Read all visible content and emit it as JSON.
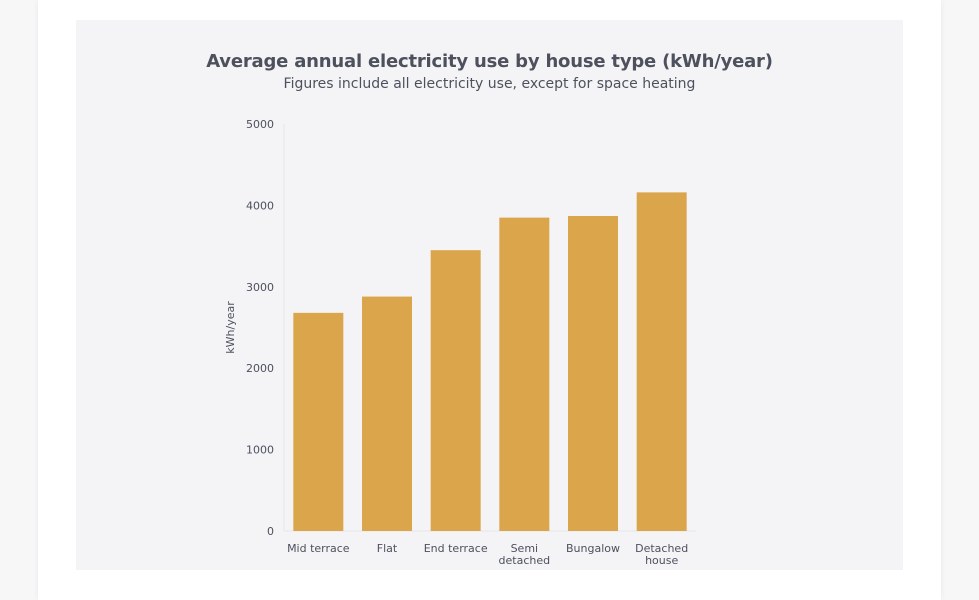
{
  "colors": {
    "bar": "#dba54b",
    "panel": "#f4f4f7",
    "axis": "#e6e6ea",
    "text": "#4d515d"
  },
  "chart_data": {
    "type": "bar",
    "title": "Average annual electricity use by house type (kWh/year)",
    "subtitle": "Figures include all electricity use, except for space heating",
    "ylabel": "kWh/year",
    "xlabel": "",
    "ylim": [
      0,
      5000
    ],
    "yticks": [
      0,
      1000,
      2000,
      3000,
      4000,
      5000
    ],
    "grid": false,
    "categories": [
      [
        "Mid terrace"
      ],
      [
        "Flat"
      ],
      [
        "End terrace"
      ],
      [
        "Semi",
        "detached"
      ],
      [
        "Bungalow"
      ],
      [
        "Detached",
        "house"
      ]
    ],
    "values": [
      2680,
      2880,
      3450,
      3850,
      3870,
      4160
    ]
  }
}
